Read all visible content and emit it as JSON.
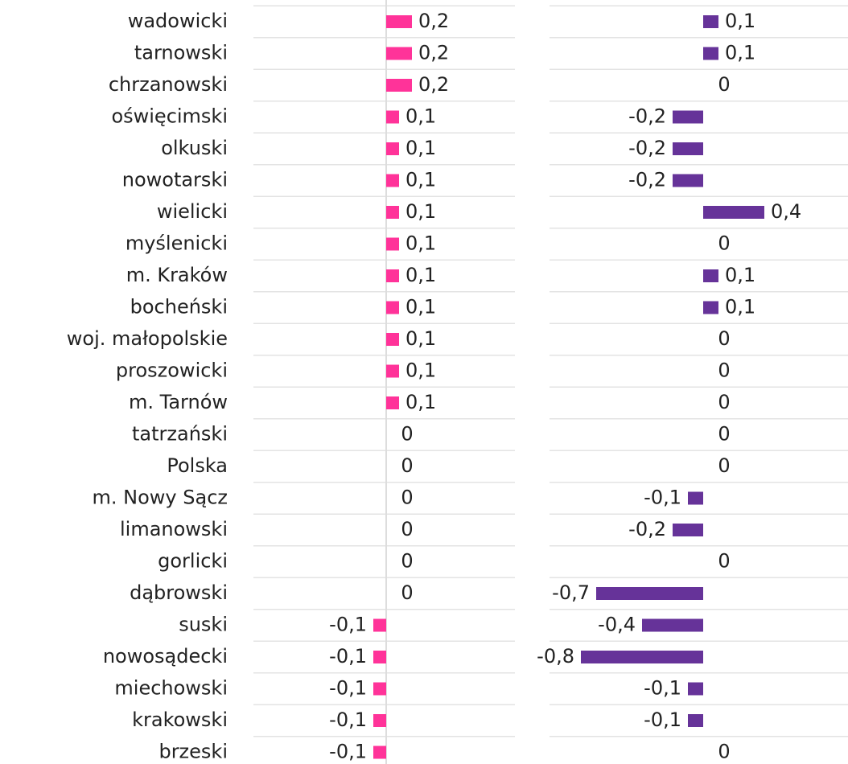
{
  "chart_data": {
    "type": "bar",
    "orientation": "horizontal",
    "categories": [
      "wadowicki",
      "tarnowski",
      "chrzanowski",
      "oświęcimski",
      "olkuski",
      "nowotarski",
      "wielicki",
      "myślenicki",
      "m. Kraków",
      "bocheński",
      "woj. małopolskie",
      "proszowicki",
      "m. Tarnów",
      "tatrzański",
      "Polska",
      "m. Nowy Sącz",
      "limanowski",
      "gorlicki",
      "dąbrowski",
      "suski",
      "nowosądecki",
      "miechowski",
      "krakowski",
      "brzeski"
    ],
    "series": [
      {
        "color": "#ff3399",
        "values": [
          0.2,
          0.2,
          0.2,
          0.1,
          0.1,
          0.1,
          0.1,
          0.1,
          0.1,
          0.1,
          0.1,
          0.1,
          0.1,
          0,
          0,
          0,
          0,
          0,
          0,
          -0.1,
          -0.1,
          -0.1,
          -0.1,
          -0.1
        ],
        "value_labels": [
          "0,2",
          "0,2",
          "0,2",
          "0,1",
          "0,1",
          "0,1",
          "0,1",
          "0,1",
          "0,1",
          "0,1",
          "0,1",
          "0,1",
          "0,1",
          "0",
          "0",
          "0",
          "0",
          "0",
          "0",
          "-0,1",
          "-0,1",
          "-0,1",
          "-0,1",
          "-0,1"
        ]
      },
      {
        "color": "#663399",
        "values": [
          0.1,
          0.1,
          0,
          -0.2,
          -0.2,
          -0.2,
          0.4,
          0,
          0.1,
          0.1,
          0,
          0,
          0,
          0,
          0,
          -0.1,
          -0.2,
          0,
          -0.7,
          -0.4,
          -0.8,
          -0.1,
          -0.1,
          0
        ],
        "value_labels": [
          "0,1",
          "0,1",
          "0",
          "-0,2",
          "-0,2",
          "-0,2",
          "0,4",
          "0",
          "0,1",
          "0,1",
          "0",
          "0",
          "0",
          "0",
          "0",
          "-0,1",
          "-0,2",
          "0",
          "-0,7",
          "-0,4",
          "-0,8",
          "-0,1",
          "-0,1",
          "0"
        ]
      }
    ]
  }
}
